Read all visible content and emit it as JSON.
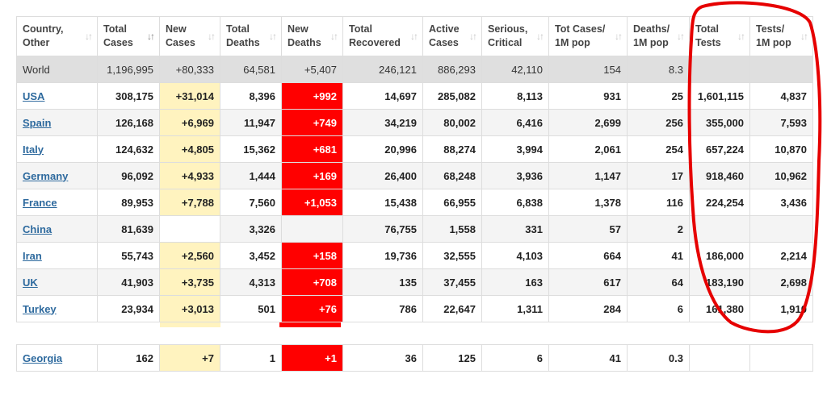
{
  "table": {
    "headers": [
      {
        "line1": "Country,",
        "line2": "Other"
      },
      {
        "line1": "Total",
        "line2": "Cases"
      },
      {
        "line1": "New",
        "line2": "Cases"
      },
      {
        "line1": "Total",
        "line2": "Deaths"
      },
      {
        "line1": "New",
        "line2": "Deaths"
      },
      {
        "line1": "Total",
        "line2": "Recovered"
      },
      {
        "line1": "Active",
        "line2": "Cases"
      },
      {
        "line1": "Serious,",
        "line2": "Critical"
      },
      {
        "line1": "Tot Cases/",
        "line2": "1M pop"
      },
      {
        "line1": "Deaths/",
        "line2": "1M pop"
      },
      {
        "line1": "Total",
        "line2": "Tests"
      },
      {
        "line1": "Tests/",
        "line2": "1M pop"
      }
    ],
    "world": [
      "World",
      "1,196,995",
      "+80,333",
      "64,581",
      "+5,407",
      "246,121",
      "886,293",
      "42,110",
      "154",
      "8.3",
      "",
      ""
    ],
    "rows": [
      [
        "USA",
        "308,175",
        "+31,014",
        "8,396",
        "+992",
        "14,697",
        "285,082",
        "8,113",
        "931",
        "25",
        "1,601,115",
        "4,837"
      ],
      [
        "Spain",
        "126,168",
        "+6,969",
        "11,947",
        "+749",
        "34,219",
        "80,002",
        "6,416",
        "2,699",
        "256",
        "355,000",
        "7,593"
      ],
      [
        "Italy",
        "124,632",
        "+4,805",
        "15,362",
        "+681",
        "20,996",
        "88,274",
        "3,994",
        "2,061",
        "254",
        "657,224",
        "10,870"
      ],
      [
        "Germany",
        "96,092",
        "+4,933",
        "1,444",
        "+169",
        "26,400",
        "68,248",
        "3,936",
        "1,147",
        "17",
        "918,460",
        "10,962"
      ],
      [
        "France",
        "89,953",
        "+7,788",
        "7,560",
        "+1,053",
        "15,438",
        "66,955",
        "6,838",
        "1,378",
        "116",
        "224,254",
        "3,436"
      ],
      [
        "China",
        "81,639",
        "",
        "3,326",
        "",
        "76,755",
        "1,558",
        "331",
        "57",
        "2",
        "",
        ""
      ],
      [
        "Iran",
        "55,743",
        "+2,560",
        "3,452",
        "+158",
        "19,736",
        "32,555",
        "4,103",
        "664",
        "41",
        "186,000",
        "2,214"
      ],
      [
        "UK",
        "41,903",
        "+3,735",
        "4,313",
        "+708",
        "135",
        "37,455",
        "163",
        "617",
        "64",
        "183,190",
        "2,698"
      ],
      [
        "Turkey",
        "23,934",
        "+3,013",
        "501",
        "+76",
        "786",
        "22,647",
        "1,311",
        "284",
        "6",
        "161,380",
        "1,910"
      ]
    ],
    "georgia": [
      "Georgia",
      "162",
      "+7",
      "1",
      "+1",
      "36",
      "125",
      "6",
      "41",
      "0.3",
      "",
      ""
    ]
  },
  "colors": {
    "new_cases_highlight": "#fff3bf",
    "new_deaths_highlight": "#ff0000",
    "world_row_bg": "#dfdfdf",
    "country_link": "#2e6a9e",
    "annotation_circle": "#e60000"
  },
  "icons": {
    "sort": "sort-arrows-icon",
    "sort_active": "sort-desc-icon"
  }
}
